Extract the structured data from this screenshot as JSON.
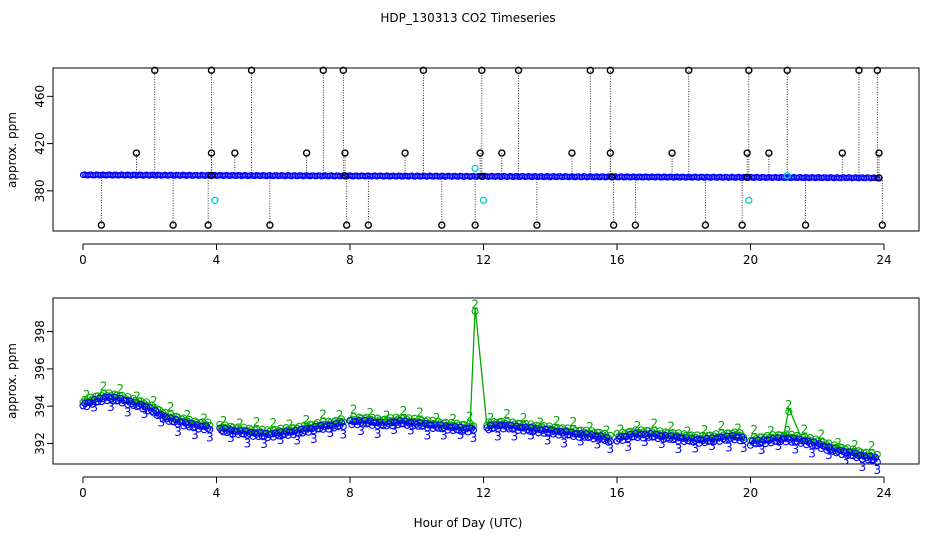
{
  "title": "HDP_130313  CO2 Timeseries",
  "xlabel": "Hour of Day (UTC)",
  "colors": {
    "black": "#000000",
    "blue": "#0000ff",
    "cyan": "#00cccc",
    "green": "#00aa00"
  },
  "chart_data": [
    {
      "type": "scatter",
      "ylabel": "approx. ppm",
      "xlim": [
        0,
        24
      ],
      "ylim": [
        346,
        484
      ],
      "x_ticks": [
        0,
        4,
        8,
        12,
        16,
        20,
        24
      ],
      "y_ticks": [
        380,
        420,
        460
      ],
      "baseline": {
        "start": 393.5,
        "end": 391.0
      },
      "spikes_high": [
        2.15,
        3.85,
        5.05,
        7.2,
        7.8,
        10.2,
        11.95,
        13.05,
        15.2,
        15.8,
        18.15,
        19.95,
        21.1,
        23.25,
        23.8
      ],
      "spikes_mid": [
        1.6,
        3.85,
        4.55,
        6.7,
        7.85,
        9.65,
        11.9,
        12.55,
        14.65,
        15.8,
        17.65,
        19.9,
        20.55,
        22.75,
        23.85
      ],
      "spikes_low": [
        0.55,
        2.7,
        3.75,
        5.6,
        7.9,
        8.55,
        10.75,
        11.75,
        13.6,
        15.9,
        16.55,
        18.65,
        19.75,
        21.65,
        23.95
      ],
      "cyan_points": [
        {
          "x": 3.95,
          "y": 372
        },
        {
          "x": 11.75,
          "y": 399
        },
        {
          "x": 12.0,
          "y": 372
        },
        {
          "x": 19.95,
          "y": 372
        },
        {
          "x": 21.1,
          "y": 393
        }
      ]
    },
    {
      "type": "line",
      "ylabel": "approx. ppm",
      "xlim": [
        0,
        24
      ],
      "ylim": [
        390.9,
        399.8
      ],
      "x_ticks": [
        0,
        4,
        8,
        12,
        16,
        20,
        24
      ],
      "y_ticks": [
        392,
        394,
        396,
        398
      ],
      "series": [
        {
          "marker_label": "2",
          "color": "#00aa00",
          "peaks": [
            {
              "x": 11.75,
              "y": 399.3
            },
            {
              "x": 21.15,
              "y": 393.9
            }
          ]
        },
        {
          "marker_label": "3",
          "color": "#0000ff"
        }
      ],
      "segments": [
        {
          "x": [
            0.0,
            0.3,
            0.7,
            1.1,
            1.5,
            1.9,
            2.2,
            2.5,
            2.9,
            3.3,
            3.8
          ],
          "y": [
            394.1,
            394.3,
            394.5,
            394.4,
            394.2,
            394.0,
            393.7,
            393.4,
            393.2,
            393.0,
            392.9
          ]
        },
        {
          "x": [
            4.1,
            4.5,
            5.0,
            5.5,
            6.0,
            6.5,
            7.0,
            7.5,
            7.8
          ],
          "y": [
            392.8,
            392.7,
            392.6,
            392.5,
            392.6,
            392.7,
            392.9,
            393.0,
            393.1
          ]
        },
        {
          "x": [
            8.0,
            8.5,
            9.0,
            9.5,
            10.0,
            10.5,
            11.0,
            11.5,
            11.7
          ],
          "y": [
            393.2,
            393.2,
            393.1,
            393.2,
            393.1,
            393.0,
            392.9,
            392.8,
            392.9
          ]
        },
        {
          "x": [
            12.1,
            12.5,
            13.0,
            13.5,
            14.0,
            14.5,
            15.0,
            15.5,
            15.8
          ],
          "y": [
            392.9,
            393.0,
            392.9,
            392.8,
            392.7,
            392.6,
            392.5,
            392.4,
            392.2
          ]
        },
        {
          "x": [
            16.0,
            16.5,
            17.0,
            17.5,
            18.0,
            18.5,
            19.0,
            19.5,
            19.8
          ],
          "y": [
            392.3,
            392.5,
            392.5,
            392.4,
            392.3,
            392.2,
            392.3,
            392.4,
            392.3
          ]
        },
        {
          "x": [
            20.0,
            20.5,
            21.0,
            21.5,
            22.0,
            22.5,
            23.0,
            23.5,
            23.8
          ],
          "y": [
            392.1,
            392.2,
            392.3,
            392.2,
            392.0,
            391.7,
            391.5,
            391.3,
            391.2
          ]
        }
      ]
    }
  ]
}
